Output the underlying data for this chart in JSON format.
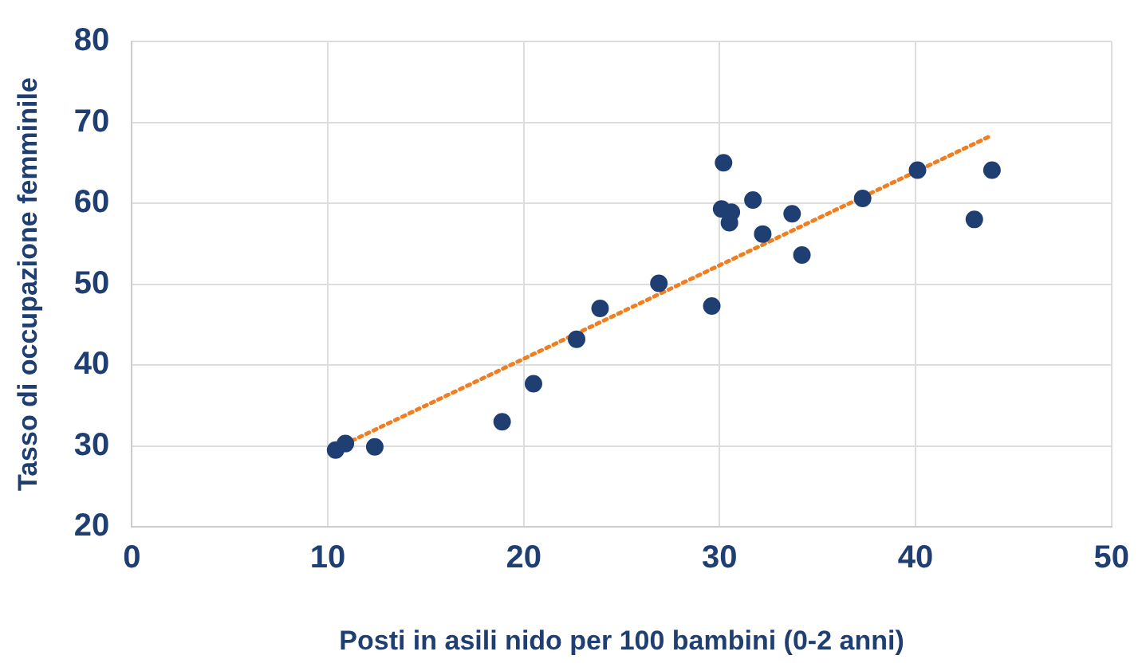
{
  "chart_data": {
    "type": "scatter",
    "xlabel": "Posti in asili nido per 100 bambini (0-2 anni)",
    "ylabel": "Tasso di occupazione femminile",
    "xlim": [
      0,
      50
    ],
    "xticks": [
      0,
      10,
      20,
      30,
      40,
      50
    ],
    "ylim": [
      20,
      80
    ],
    "yticks": [
      20,
      30,
      40,
      50,
      60,
      70,
      80
    ],
    "grid": true,
    "legend": false,
    "series": [
      {
        "type": "scatter",
        "marker": "circle",
        "color": "#1f3f73",
        "x": [
          10.4,
          10.9,
          12.4,
          18.9,
          20.5,
          22.7,
          23.9,
          26.9,
          29.6,
          30.1,
          30.2,
          30.6,
          30.5,
          31.7,
          32.2,
          33.7,
          34.2,
          37.3,
          40.1,
          43,
          43.9
        ],
        "values": [
          29.5,
          30.3,
          29.9,
          33,
          37.7,
          43.2,
          47,
          50.1,
          47.3,
          59.3,
          65,
          58.9,
          57.6,
          60.4,
          56.2,
          58.7,
          53.6,
          60.6,
          64.1,
          58,
          64.1
        ]
      },
      {
        "type": "line",
        "color": "#f07f22",
        "line_style": "dotted",
        "x": [
          10.5,
          43.9
        ],
        "values": [
          29.8,
          68.4
        ]
      }
    ]
  }
}
